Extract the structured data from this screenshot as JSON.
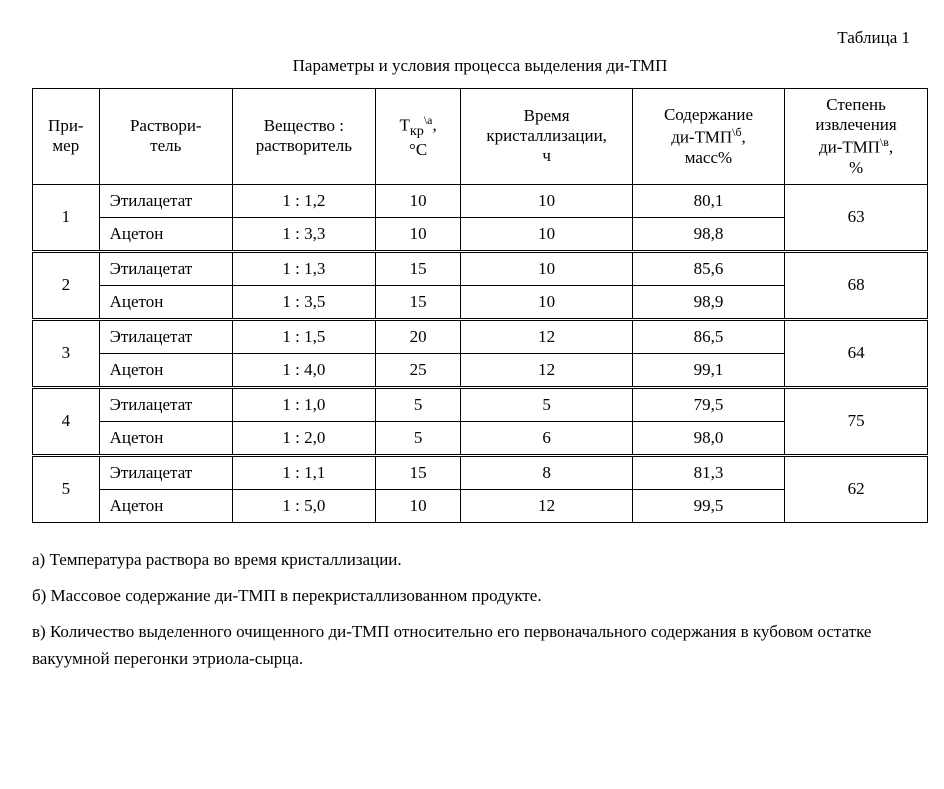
{
  "table_label": "Таблица 1",
  "caption": "Параметры и условия процесса выделения ди-ТМП",
  "columns": [
    {
      "html": "При-<br>мер",
      "width": "7%"
    },
    {
      "html": "Раствори-<br>тель",
      "width": "14%"
    },
    {
      "html": "Вещество :<br>растворитель",
      "width": "15%"
    },
    {
      "html": "Т<sub>кр</sub><sup>\\а</sup>,<br>°С",
      "width": "9%"
    },
    {
      "html": "Время<br>кристаллизации,<br>ч",
      "width": "18%"
    },
    {
      "html": "Содержание<br>ди-ТМП<sup>\\б</sup>,<br>масс%",
      "width": "16%"
    },
    {
      "html": "Степень<br>извлечения<br>ди-ТМП<sup>\\в</sup>,<br>%",
      "width": "15%"
    }
  ],
  "groups": [
    {
      "example": "1",
      "recovery": "63",
      "rows": [
        {
          "solvent": "Этилацетат",
          "ratio": "1 : 1,2",
          "temp": "10",
          "time": "10",
          "content": "80,1"
        },
        {
          "solvent": "Ацетон",
          "ratio": "1 : 3,3",
          "temp": "10",
          "time": "10",
          "content": "98,8"
        }
      ]
    },
    {
      "example": "2",
      "recovery": "68",
      "rows": [
        {
          "solvent": "Этилацетат",
          "ratio": "1 : 1,3",
          "temp": "15",
          "time": "10",
          "content": "85,6"
        },
        {
          "solvent": "Ацетон",
          "ratio": "1 : 3,5",
          "temp": "15",
          "time": "10",
          "content": "98,9"
        }
      ]
    },
    {
      "example": "3",
      "recovery": "64",
      "rows": [
        {
          "solvent": "Этилацетат",
          "ratio": "1 : 1,5",
          "temp": "20",
          "time": "12",
          "content": "86,5"
        },
        {
          "solvent": "Ацетон",
          "ratio": "1 : 4,0",
          "temp": "25",
          "time": "12",
          "content": "99,1"
        }
      ]
    },
    {
      "example": "4",
      "recovery": "75",
      "rows": [
        {
          "solvent": "Этилацетат",
          "ratio": "1 : 1,0",
          "temp": "5",
          "time": "5",
          "content": "79,5"
        },
        {
          "solvent": "Ацетон",
          "ratio": "1 : 2,0",
          "temp": "5",
          "time": "6",
          "content": "98,0"
        }
      ]
    },
    {
      "example": "5",
      "recovery": "62",
      "rows": [
        {
          "solvent": "Этилацетат",
          "ratio": "1 : 1,1",
          "temp": "15",
          "time": "8",
          "content": "81,3"
        },
        {
          "solvent": "Ацетон",
          "ratio": "1 : 5,0",
          "temp": "10",
          "time": "12",
          "content": "99,5"
        }
      ]
    }
  ],
  "notes": [
    "а) Температура раствора во время кристаллизации.",
    "б) Массовое содержание ди-ТМП в перекристаллизованном продукте.",
    "в) Количество выделенного очищенного ди-ТМП относительно его первоначального содержания в кубовом остатке вакуумной перегонки этриола-сырца."
  ]
}
